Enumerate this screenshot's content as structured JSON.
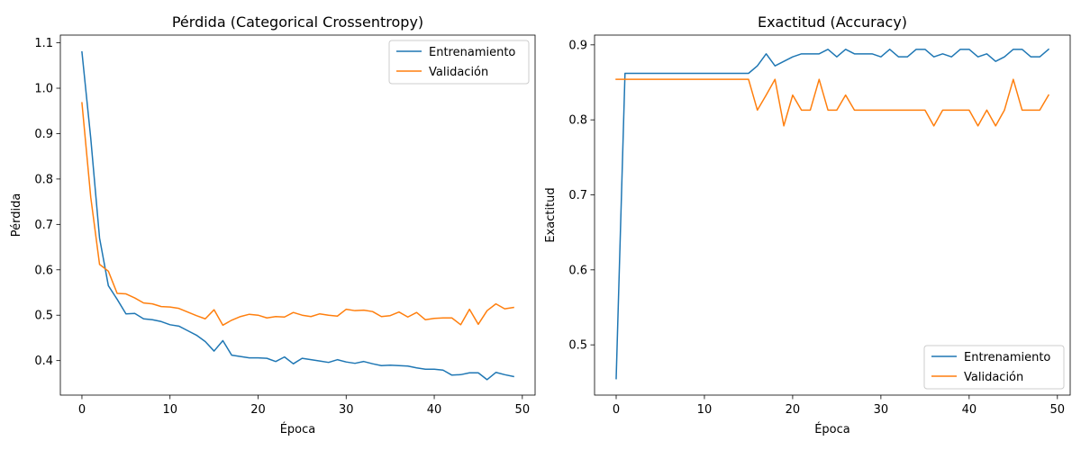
{
  "chart_data": [
    {
      "type": "line",
      "title": "Pérdida (Categorical Crossentropy)",
      "xlabel": "Época",
      "ylabel": "Pérdida",
      "xlim": [
        -2.45,
        51.45
      ],
      "ylim": [
        0.324,
        1.117
      ],
      "xticks": [
        0,
        10,
        20,
        30,
        40,
        50
      ],
      "yticks": [
        0.4,
        0.5,
        0.6,
        0.7,
        0.8,
        0.9,
        1.0,
        1.1
      ],
      "ytick_labels": [
        "0.4",
        "0.5",
        "0.6",
        "0.7",
        "0.8",
        "0.9",
        "1.0",
        "1.1"
      ],
      "legend_position": "top-right",
      "series": [
        {
          "name": "Entrenamiento",
          "color": "#1f77b4",
          "values": [
            1.08,
            0.89,
            0.67,
            0.565,
            0.535,
            0.503,
            0.504,
            0.492,
            0.49,
            0.486,
            0.479,
            0.476,
            0.466,
            0.456,
            0.442,
            0.421,
            0.444,
            0.412,
            0.409,
            0.406,
            0.406,
            0.405,
            0.398,
            0.408,
            0.393,
            0.405,
            0.402,
            0.399,
            0.396,
            0.402,
            0.397,
            0.394,
            0.398,
            0.393,
            0.389,
            0.39,
            0.389,
            0.388,
            0.384,
            0.381,
            0.381,
            0.379,
            0.368,
            0.369,
            0.373,
            0.373,
            0.358,
            0.374,
            0.369,
            0.365
          ]
        },
        {
          "name": "Validación",
          "color": "#ff7f0e",
          "values": [
            0.968,
            0.76,
            0.612,
            0.597,
            0.548,
            0.547,
            0.538,
            0.527,
            0.525,
            0.519,
            0.518,
            0.515,
            0.507,
            0.499,
            0.492,
            0.512,
            0.478,
            0.489,
            0.497,
            0.502,
            0.5,
            0.494,
            0.497,
            0.496,
            0.506,
            0.5,
            0.497,
            0.503,
            0.5,
            0.498,
            0.513,
            0.51,
            0.511,
            0.508,
            0.497,
            0.499,
            0.507,
            0.496,
            0.506,
            0.49,
            0.493,
            0.494,
            0.494,
            0.479,
            0.513,
            0.48,
            0.51,
            0.525,
            0.514,
            0.517
          ]
        }
      ]
    },
    {
      "type": "line",
      "title": "Exactitud (Accuracy)",
      "xlabel": "Época",
      "ylabel": "Exactitud",
      "xlim": [
        -2.45,
        51.45
      ],
      "ylim": [
        0.433,
        0.913
      ],
      "xticks": [
        0,
        10,
        20,
        30,
        40,
        50
      ],
      "yticks": [
        0.5,
        0.6,
        0.7,
        0.8,
        0.9
      ],
      "ytick_labels": [
        "0.5",
        "0.6",
        "0.7",
        "0.8",
        "0.9"
      ],
      "legend_position": "bottom-right",
      "series": [
        {
          "name": "Entrenamiento",
          "color": "#1f77b4",
          "values": [
            0.455,
            0.862,
            0.862,
            0.862,
            0.862,
            0.862,
            0.862,
            0.862,
            0.862,
            0.862,
            0.862,
            0.862,
            0.862,
            0.862,
            0.862,
            0.862,
            0.872,
            0.888,
            0.872,
            0.878,
            0.884,
            0.888,
            0.888,
            0.888,
            0.894,
            0.884,
            0.894,
            0.888,
            0.888,
            0.888,
            0.884,
            0.894,
            0.884,
            0.884,
            0.894,
            0.894,
            0.884,
            0.888,
            0.884,
            0.894,
            0.894,
            0.884,
            0.888,
            0.878,
            0.884,
            0.894,
            0.894,
            0.884,
            0.884,
            0.894
          ]
        },
        {
          "name": "Validación",
          "color": "#ff7f0e",
          "values": [
            0.854,
            0.854,
            0.854,
            0.854,
            0.854,
            0.854,
            0.854,
            0.854,
            0.854,
            0.854,
            0.854,
            0.854,
            0.854,
            0.854,
            0.854,
            0.854,
            0.813,
            0.833,
            0.854,
            0.792,
            0.833,
            0.813,
            0.813,
            0.854,
            0.813,
            0.813,
            0.833,
            0.813,
            0.813,
            0.813,
            0.813,
            0.813,
            0.813,
            0.813,
            0.813,
            0.813,
            0.792,
            0.813,
            0.813,
            0.813,
            0.813,
            0.792,
            0.813,
            0.792,
            0.813,
            0.854,
            0.813,
            0.813,
            0.813,
            0.833
          ]
        }
      ]
    }
  ]
}
